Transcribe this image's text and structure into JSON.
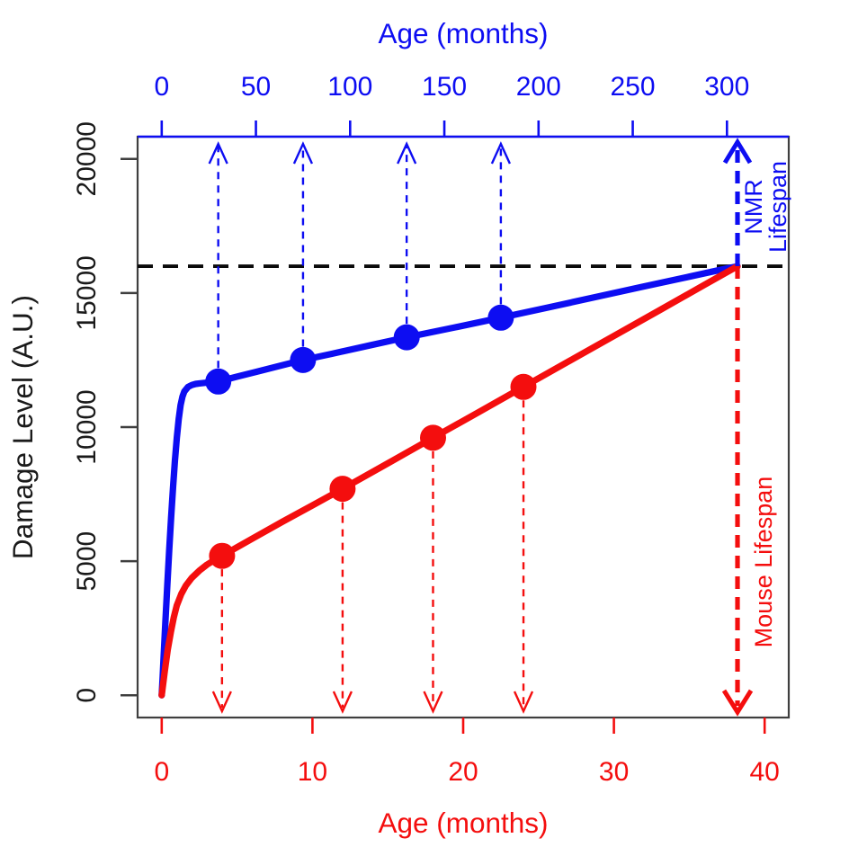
{
  "chart_data": {
    "type": "line",
    "description_visible_elements": "Damage accumulation curves for NMR (blue, top age axis) and Mouse (red, bottom age axis) converging at the same damage level at end of lifespan",
    "axes": {
      "top_x": {
        "label": "Age (months)",
        "color": "#0d0df2",
        "ticks": [
          0,
          50,
          100,
          150,
          200,
          250,
          300
        ],
        "range": [
          -12.8,
          332.8
        ]
      },
      "bottom_x": {
        "label": "Age (months)",
        "color": "#f40e0e",
        "ticks": [
          0,
          10,
          20,
          30,
          40
        ],
        "range": [
          -1.6,
          41.6
        ]
      },
      "left_y": {
        "label": "Damage Level (A.U.)",
        "color": "#1a1a1a",
        "ticks": [
          0,
          5000,
          10000,
          15000,
          20000
        ],
        "range": [
          -830,
          20830
        ]
      }
    },
    "threshold_line": {
      "value": 16000,
      "color": "#0a0a0a",
      "style": "dashed"
    },
    "series": [
      {
        "name": "NMR",
        "color": "#0d0df2",
        "x_axis": "top_x",
        "marker_arrows": "up",
        "lifespan_arrow": "up",
        "lifespan_x": 305.6,
        "lifespan_damage": 16000,
        "markers": [
          [
            30,
            11700
          ],
          [
            75,
            12500
          ],
          [
            130,
            13350
          ],
          [
            180,
            14080
          ]
        ],
        "curve": [
          [
            0,
            0
          ],
          [
            0.5,
            700
          ],
          [
            1,
            1400
          ],
          [
            2,
            2800
          ],
          [
            3,
            4150
          ],
          [
            4,
            5450
          ],
          [
            5,
            6650
          ],
          [
            6,
            7750
          ],
          [
            7,
            8750
          ],
          [
            8,
            9600
          ],
          [
            9,
            10300
          ],
          [
            10,
            10820
          ],
          [
            11,
            11140
          ],
          [
            12,
            11330
          ],
          [
            14,
            11500
          ],
          [
            16,
            11570
          ],
          [
            18,
            11610
          ],
          [
            20,
            11630
          ],
          [
            25,
            11665
          ],
          [
            30,
            11700
          ],
          [
            40,
            11880
          ],
          [
            50,
            12060
          ],
          [
            62,
            12270
          ],
          [
            75,
            12500
          ],
          [
            90,
            12730
          ],
          [
            110,
            13040
          ],
          [
            130,
            13350
          ],
          [
            155,
            13710
          ],
          [
            180,
            14080
          ],
          [
            205,
            14460
          ],
          [
            230,
            14845
          ],
          [
            255,
            15230
          ],
          [
            280,
            15610
          ],
          [
            295,
            15840
          ],
          [
            305.6,
            16000
          ]
        ]
      },
      {
        "name": "Mouse",
        "color": "#f40e0e",
        "x_axis": "bottom_x",
        "marker_arrows": "down",
        "lifespan_arrow": "down",
        "lifespan_x": 38.2,
        "lifespan_damage": 16000,
        "markers": [
          [
            4,
            5200
          ],
          [
            12,
            7700
          ],
          [
            18,
            9600
          ],
          [
            24,
            11500
          ]
        ],
        "curve": [
          [
            0,
            0
          ],
          [
            0.2,
            900
          ],
          [
            0.4,
            1700
          ],
          [
            0.6,
            2350
          ],
          [
            0.8,
            2900
          ],
          [
            1,
            3350
          ],
          [
            1.3,
            3780
          ],
          [
            1.6,
            4090
          ],
          [
            2,
            4380
          ],
          [
            2.5,
            4650
          ],
          [
            3,
            4870
          ],
          [
            3.5,
            5045
          ],
          [
            4,
            5200
          ],
          [
            5,
            5520
          ],
          [
            6,
            5840
          ],
          [
            8,
            6470
          ],
          [
            10,
            7080
          ],
          [
            12,
            7700
          ],
          [
            15,
            8650
          ],
          [
            18,
            9600
          ],
          [
            21,
            10550
          ],
          [
            24,
            11500
          ],
          [
            27,
            12450
          ],
          [
            30,
            13400
          ],
          [
            33,
            14350
          ],
          [
            36,
            15300
          ],
          [
            38.2,
            16000
          ]
        ]
      }
    ],
    "annotations": [
      {
        "id": "nmr-lifespan",
        "lines": [
          "NMR",
          "Lifespan"
        ],
        "color": "#0d0df2"
      },
      {
        "id": "mouse-lifespan",
        "lines": [
          "Mouse Lifespan"
        ],
        "color": "#f40e0e"
      }
    ]
  }
}
